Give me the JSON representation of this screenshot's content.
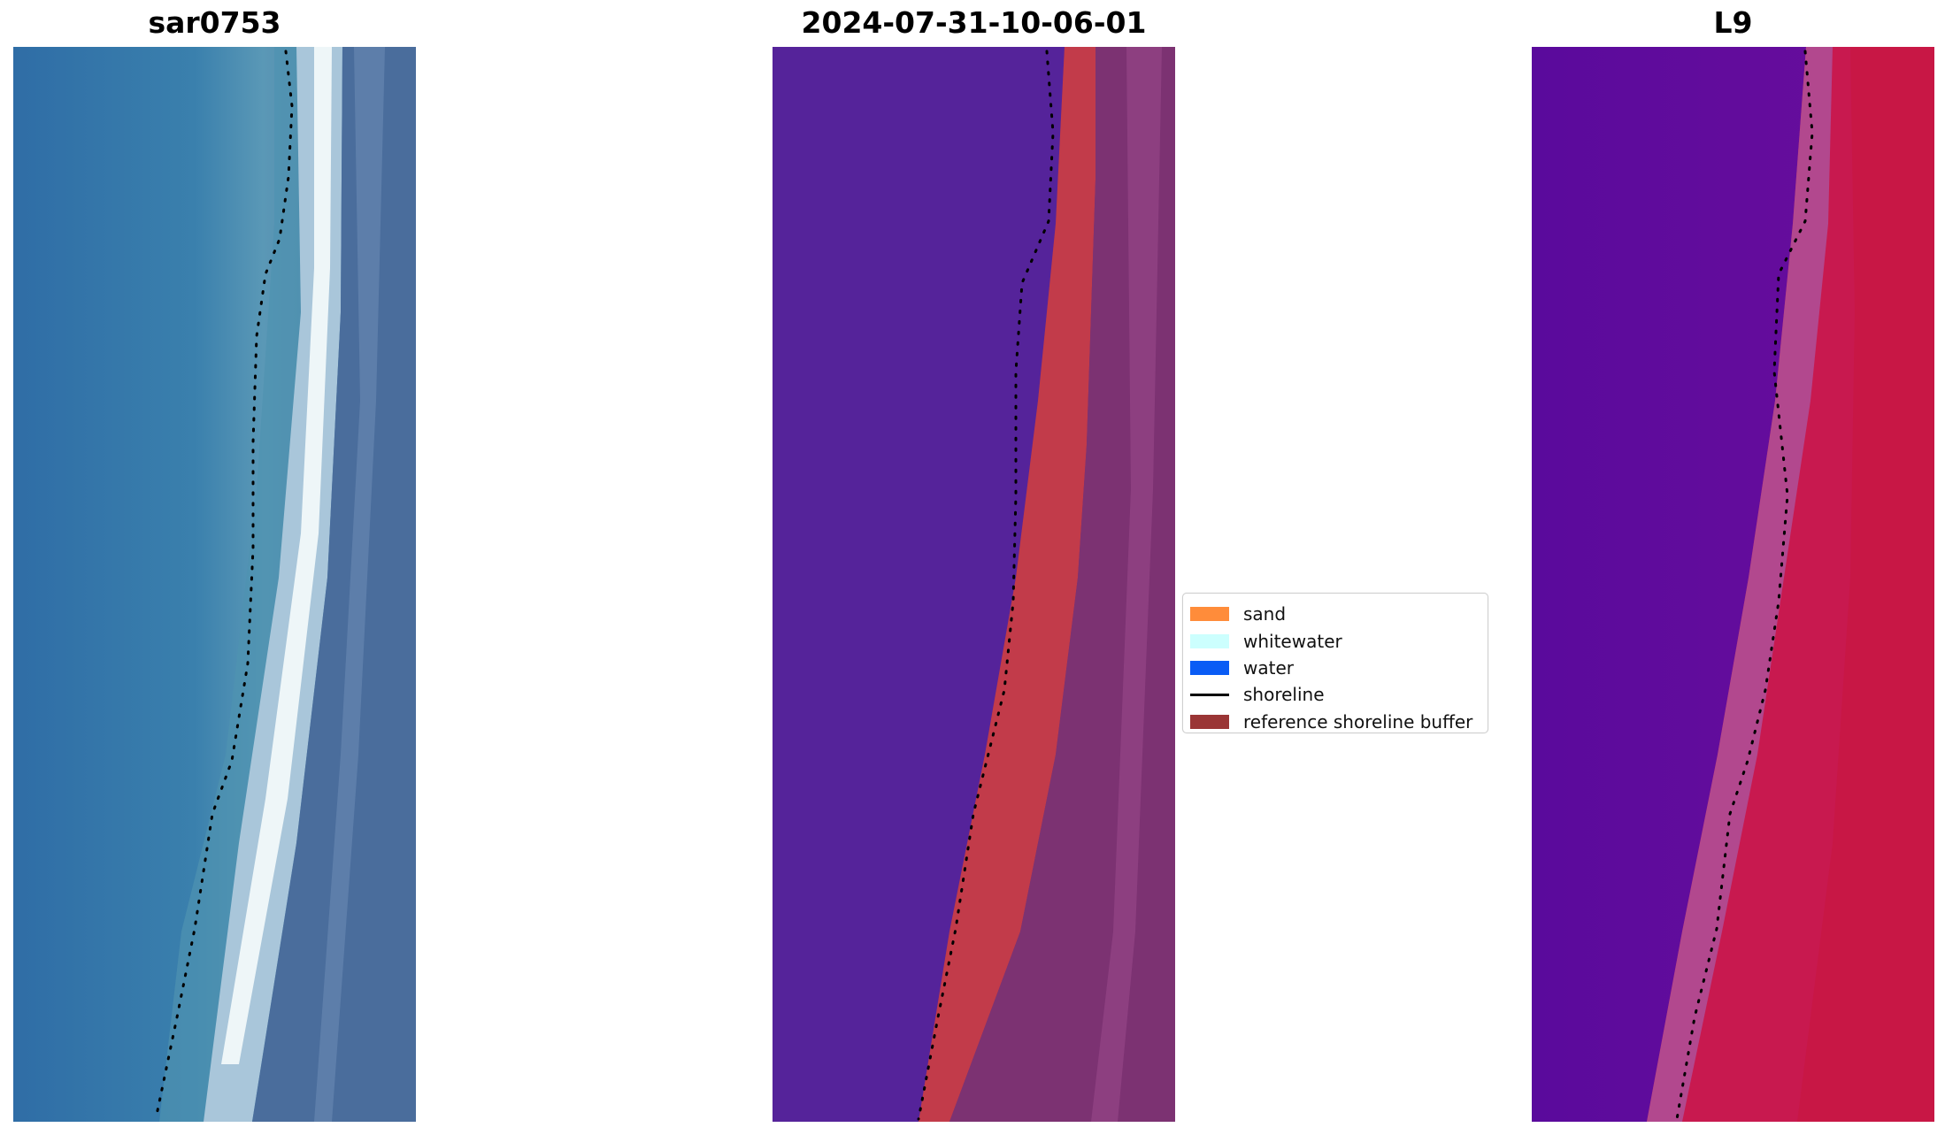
{
  "titles": {
    "left": "sar0753",
    "middle": "2024-07-31-10-06-01",
    "right": "L9"
  },
  "legend": [
    {
      "label": "sand",
      "color": "#ff8c3a",
      "kind": "patch"
    },
    {
      "label": "whitewater",
      "color": "#ccfffe",
      "kind": "patch"
    },
    {
      "label": "water",
      "color": "#0a5cf5",
      "kind": "patch"
    },
    {
      "label": "shoreline",
      "color": "#000000",
      "kind": "line"
    },
    {
      "label": "reference shoreline buffer",
      "color": "#9a3535",
      "kind": "patch"
    }
  ],
  "colors": {
    "rgb_water": "#3a79a6",
    "rgb_whitewater": "#e6f2f6",
    "rgb_land": "#4a6d9c",
    "class_water": "#55239a",
    "class_buffer": "#c23b4a",
    "class_land": "#7a2f70",
    "ndwi_water": "#5b0a9e",
    "ndwi_land": "#c8194f",
    "shoreline": "#000000"
  }
}
